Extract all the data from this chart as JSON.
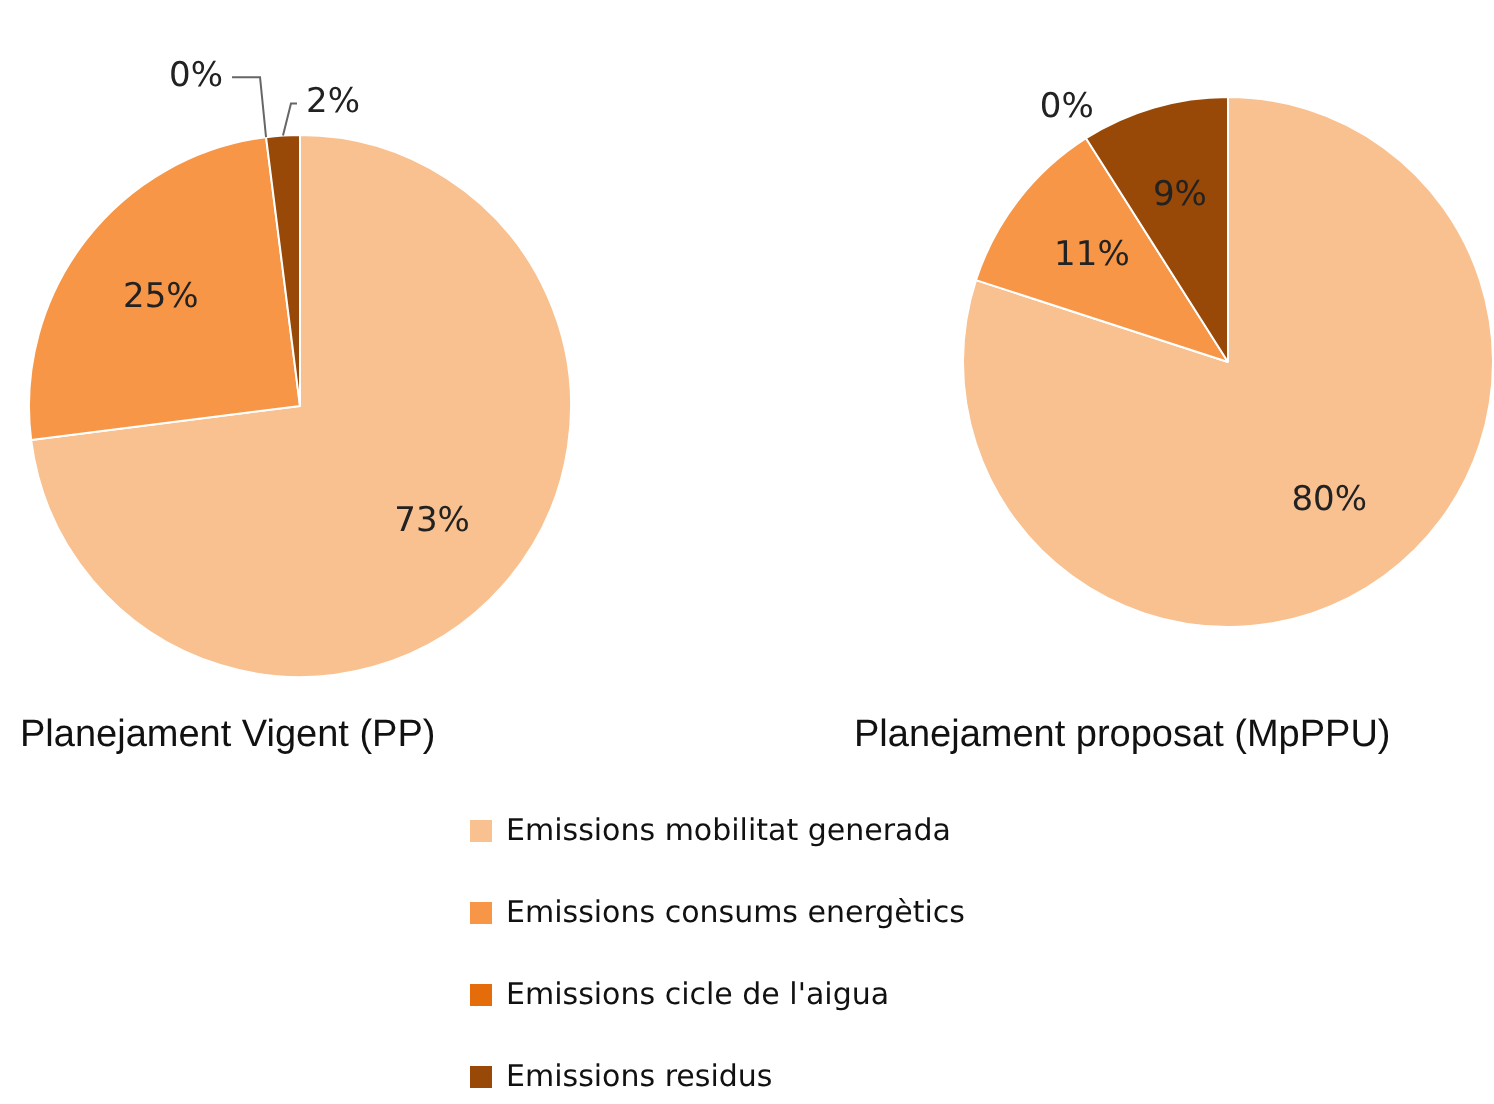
{
  "chart_data": [
    {
      "type": "pie",
      "title": "Planejament Vigent (PP)",
      "categories": [
        "Emissions mobilitat generada",
        "Emissions consums energètics",
        "Emissions cicle de l'aigua",
        "Emissions residus"
      ],
      "values": [
        73,
        25,
        0,
        2
      ],
      "value_labels": [
        "73%",
        "25%",
        "0%",
        "2%"
      ],
      "colors": [
        "#f9c090",
        "#f79646",
        "#e46c0a",
        "#984807"
      ],
      "legend": "bottom"
    },
    {
      "type": "pie",
      "title": "Planejament proposat (MpPPU)",
      "categories": [
        null,
        null,
        null,
        null
      ],
      "values": [
        80,
        11,
        0,
        9
      ],
      "value_labels": [
        "80%",
        "11%",
        "0%",
        "9%"
      ],
      "colors": [
        "#f9c090",
        "#f79646",
        "#e46c0a",
        "#984807"
      ]
    }
  ]
}
